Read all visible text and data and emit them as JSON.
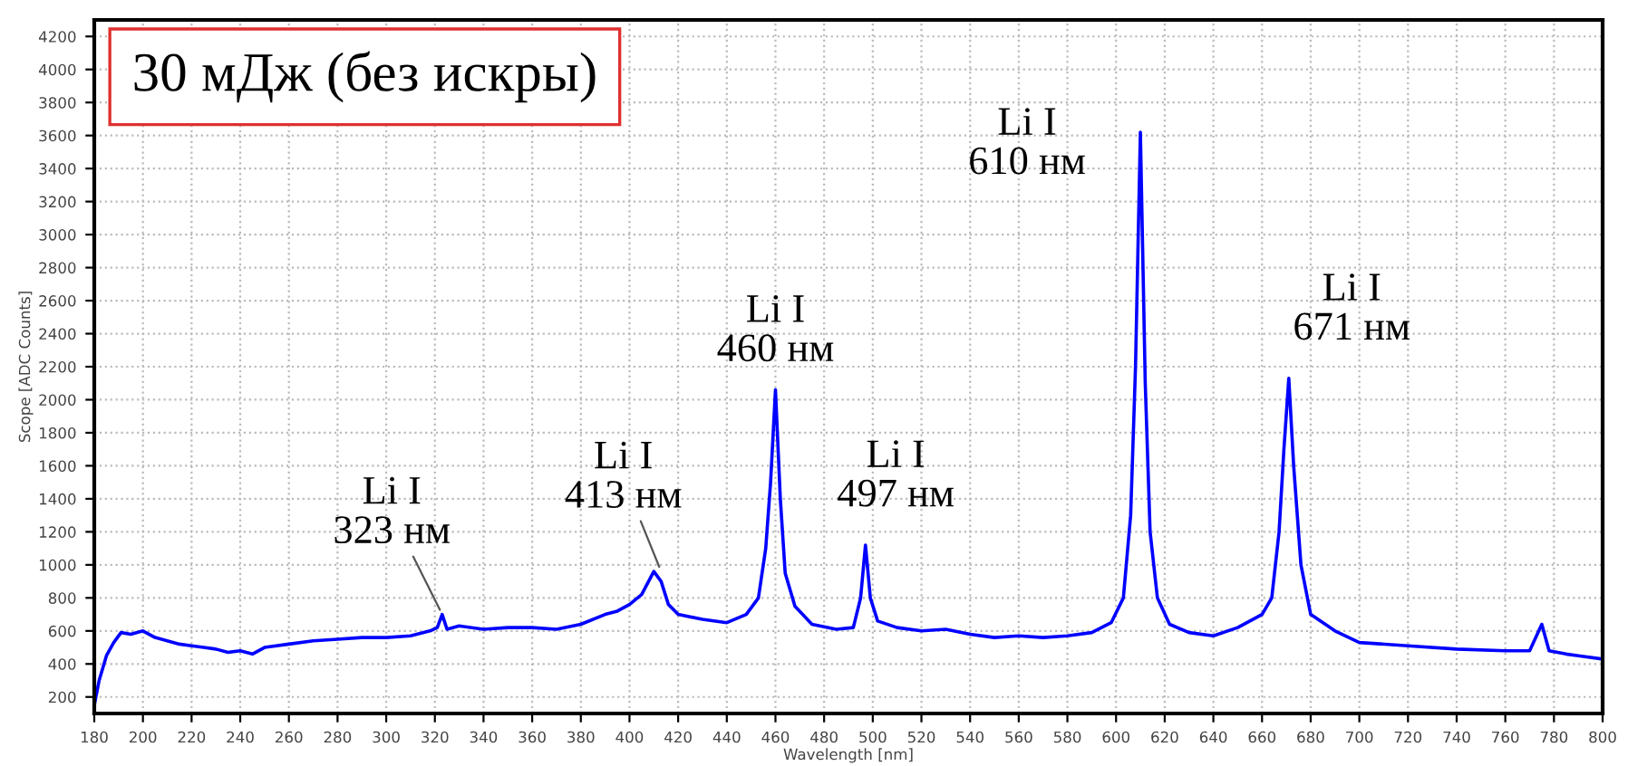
{
  "chart_data": {
    "type": "line",
    "xlabel": "Wavelength [nm]",
    "ylabel": "Scope [ADC Counts]",
    "xlim": [
      180,
      800
    ],
    "xticks": [
      180,
      200,
      220,
      240,
      260,
      280,
      300,
      320,
      340,
      360,
      380,
      400,
      420,
      440,
      460,
      480,
      500,
      520,
      540,
      560,
      580,
      600,
      620,
      640,
      660,
      680,
      700,
      720,
      740,
      760,
      780,
      800
    ],
    "ylim": [
      100,
      4300
    ],
    "yticks": [
      200,
      400,
      600,
      800,
      1000,
      1200,
      1400,
      1600,
      1800,
      2000,
      2200,
      2400,
      2600,
      2800,
      3000,
      3200,
      3400,
      3600,
      3800,
      4000,
      4200
    ],
    "grid": true,
    "line_style": "solid",
    "marker": "none",
    "series": [
      {
        "color": "#0000ff",
        "x": [
          180,
          182,
          185,
          188,
          191,
          195,
          200,
          205,
          210,
          215,
          220,
          225,
          230,
          235,
          240,
          245,
          250,
          260,
          270,
          280,
          290,
          300,
          310,
          318,
          321,
          323,
          325,
          330,
          340,
          350,
          360,
          370,
          380,
          390,
          395,
          400,
          405,
          410,
          413,
          416,
          420,
          430,
          440,
          448,
          453,
          456,
          458,
          460,
          462,
          464,
          468,
          475,
          485,
          492,
          495,
          497,
          499,
          502,
          510,
          520,
          530,
          540,
          550,
          560,
          570,
          580,
          590,
          598,
          603,
          606,
          608,
          610,
          612,
          614,
          617,
          622,
          630,
          640,
          650,
          660,
          664,
          667,
          669,
          671,
          673,
          676,
          680,
          690,
          700,
          720,
          740,
          760,
          770,
          775,
          778,
          785,
          790,
          800
        ],
        "values": [
          150,
          300,
          450,
          530,
          590,
          580,
          600,
          560,
          540,
          520,
          510,
          500,
          490,
          470,
          480,
          460,
          500,
          520,
          540,
          550,
          560,
          560,
          570,
          600,
          620,
          700,
          610,
          630,
          610,
          620,
          620,
          610,
          640,
          700,
          720,
          760,
          820,
          960,
          900,
          760,
          700,
          670,
          650,
          700,
          800,
          1100,
          1500,
          2060,
          1400,
          950,
          750,
          640,
          610,
          620,
          800,
          1120,
          800,
          660,
          620,
          600,
          610,
          580,
          560,
          570,
          560,
          570,
          590,
          650,
          800,
          1300,
          2200,
          3620,
          2100,
          1200,
          800,
          640,
          590,
          570,
          620,
          700,
          800,
          1200,
          1700,
          2130,
          1600,
          1000,
          700,
          600,
          530,
          510,
          490,
          480,
          480,
          640,
          480,
          460,
          450,
          430
        ]
      }
    ],
    "annotations": [
      {
        "text": "30 мДж (без искры)"
      },
      {
        "text": "Li I\n323 нм",
        "x": 323,
        "y": 700
      },
      {
        "text": "Li I\n413 нм",
        "x": 413,
        "y": 960
      },
      {
        "text": "Li I\n460 нм",
        "x": 460,
        "y": 2060
      },
      {
        "text": "Li I\n497 нм",
        "x": 497,
        "y": 1120
      },
      {
        "text": "Li I\n610 нм",
        "x": 610,
        "y": 3620
      },
      {
        "text": "Li I\n671 нм",
        "x": 671,
        "y": 2130
      }
    ]
  }
}
